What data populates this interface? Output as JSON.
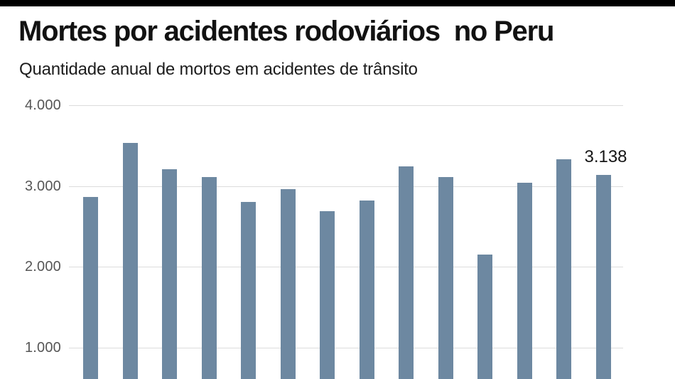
{
  "header": {
    "title": "Mortes por acidentes rodoviários  no Peru",
    "subtitle": "Quantidade anual de mortos em acidentes de trânsito"
  },
  "chart_data": {
    "type": "bar",
    "title": "Mortes por acidentes rodoviários no Peru",
    "subtitle": "Quantidade anual de mortos em acidentes de trânsito",
    "values": [
      2860,
      3530,
      3210,
      3110,
      2800,
      2960,
      2690,
      2820,
      3240,
      3110,
      2150,
      3040,
      3330,
      3138
    ],
    "y_ticks": [
      {
        "label": "4.000",
        "value": 4000
      },
      {
        "label": "3.000",
        "value": 3000
      },
      {
        "label": "2.000",
        "value": 2000
      },
      {
        "label": "1.000",
        "value": 1000
      }
    ],
    "annotation": {
      "text": "3.138",
      "bar_index": 13
    },
    "legend": "none",
    "grid": "horizontal",
    "x_axis_labels_visible": false,
    "ylim_visible_bottom_cropped": true,
    "colors": {
      "bar": "#6d88a1",
      "gridline": "#dcdcdc",
      "tick_text": "#565656",
      "title_text": "#121212",
      "annotation_text": "#161616",
      "top_bar": "#000000"
    }
  }
}
